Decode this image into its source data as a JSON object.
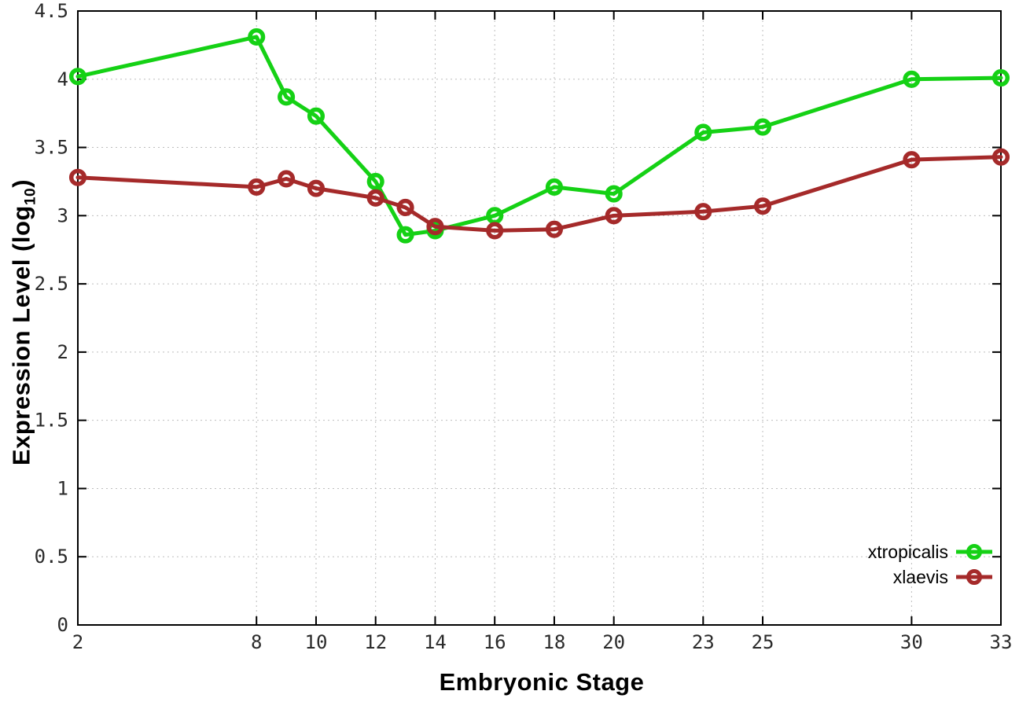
{
  "chart_data": {
    "type": "line",
    "title": "",
    "xlabel": "Embryonic Stage",
    "ylabel": "Expression Level (log10)",
    "ylabel_main": "Expression Level (log",
    "ylabel_sub": "10",
    "ylabel_close": ")",
    "x": [
      2,
      8,
      9,
      10,
      12,
      13,
      14,
      16,
      18,
      20,
      23,
      25,
      30,
      33
    ],
    "series": [
      {
        "name": "xtropicalis",
        "color": "#15D115",
        "marker": "open-circle",
        "values": [
          4.02,
          4.31,
          3.87,
          3.73,
          3.25,
          2.86,
          2.89,
          3.0,
          3.21,
          3.16,
          3.61,
          3.65,
          4.0,
          4.01
        ]
      },
      {
        "name": "xlaevis",
        "color": "#A52A2A",
        "marker": "open-circle",
        "values": [
          3.28,
          3.21,
          3.27,
          3.2,
          3.13,
          3.06,
          2.92,
          2.89,
          2.9,
          3.0,
          3.03,
          3.07,
          3.41,
          3.43
        ]
      }
    ],
    "xticks": {
      "values": [
        2,
        8,
        10,
        12,
        14,
        16,
        18,
        20,
        23,
        25,
        30,
        33
      ],
      "labels": [
        "2",
        "8",
        "10",
        "12",
        "14",
        "16",
        "18",
        "20",
        "23",
        "25",
        "30",
        "33"
      ]
    },
    "yticks": {
      "values": [
        0,
        0.5,
        1,
        1.5,
        2,
        2.5,
        3,
        3.5,
        4,
        4.5
      ],
      "labels": [
        "0",
        "0.5",
        "1",
        "1.5",
        "2",
        "2.5",
        "3",
        "3.5",
        "4",
        "4.5"
      ]
    },
    "xlim": [
      2,
      33
    ],
    "ylim": [
      0,
      4.5
    ],
    "grid": true,
    "grid_style": "dotted",
    "grid_color": "#BDBDBD",
    "axis_color": "#000000",
    "tick_label_color": "#2A2A2A",
    "background": "#FFFFFF",
    "legend_position": "bottom-right"
  }
}
